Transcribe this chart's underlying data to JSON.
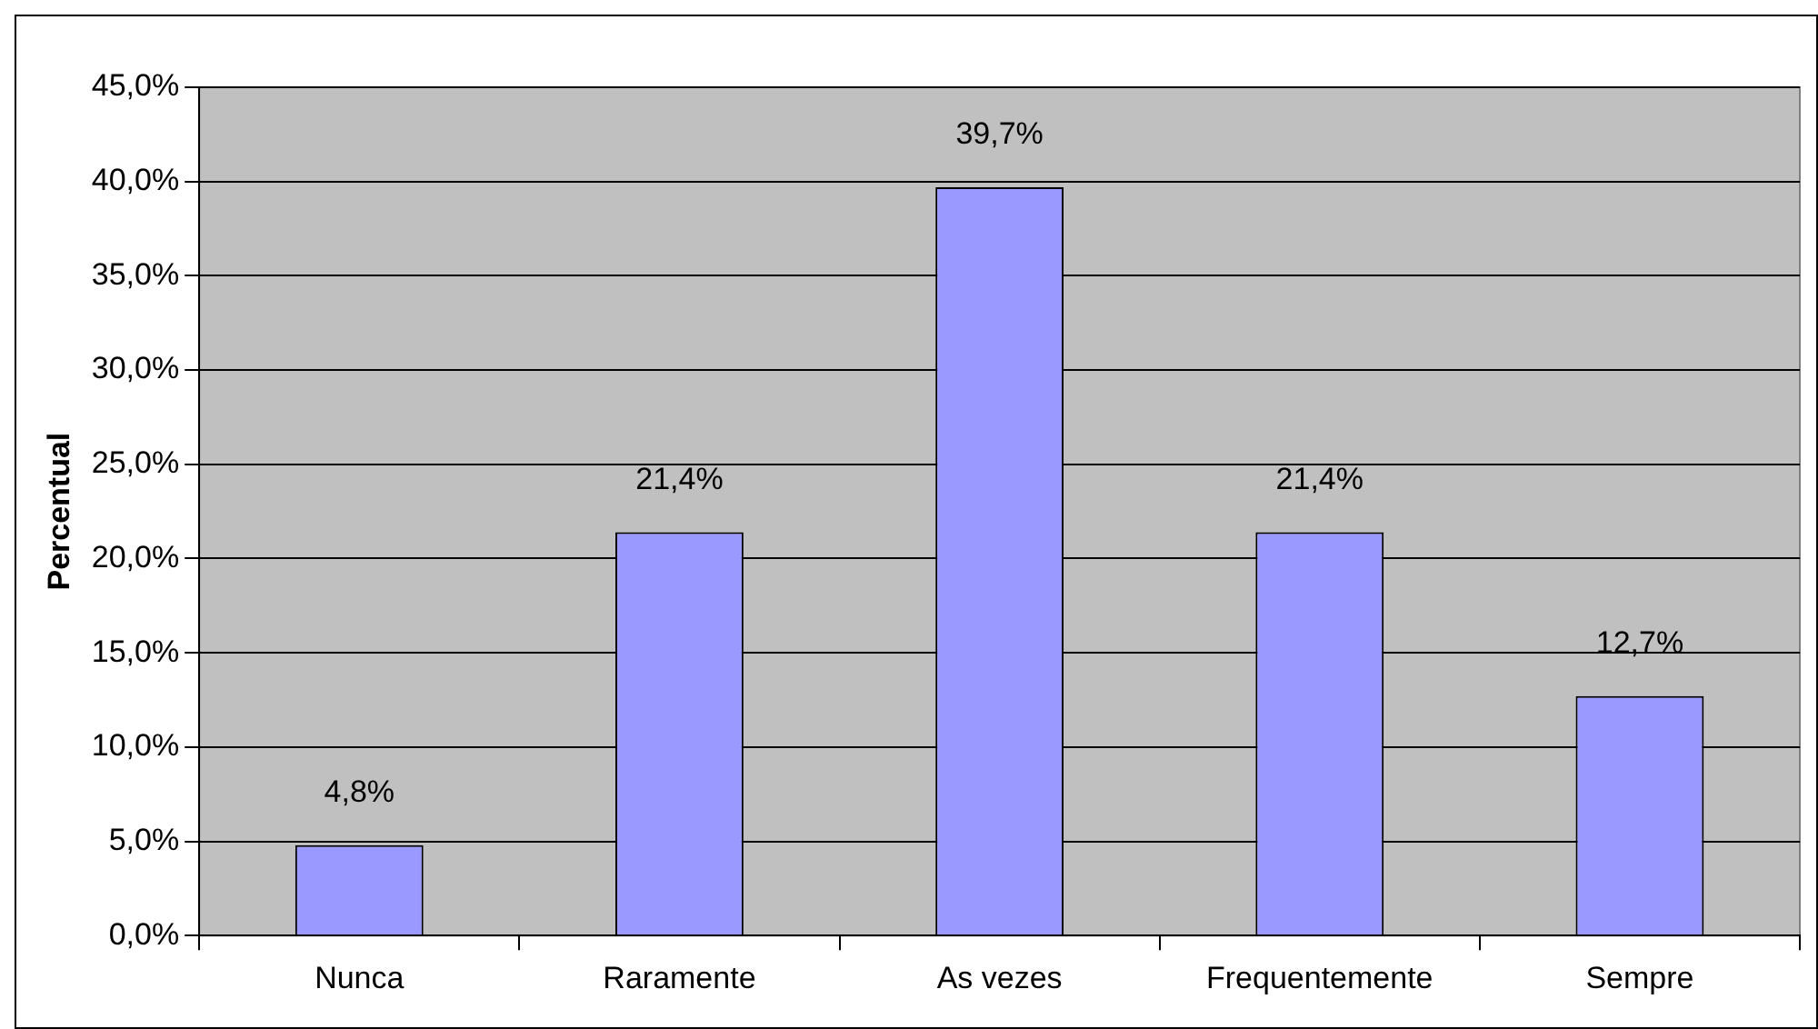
{
  "chart_data": {
    "type": "bar",
    "ylabel": "Percentual",
    "categories": [
      "Nunca",
      "Raramente",
      "As vezes",
      "Frequentemente",
      "Sempre"
    ],
    "values": [
      4.8,
      21.4,
      39.7,
      21.4,
      12.7
    ],
    "value_labels": [
      "4,8%",
      "21,4%",
      "39,7%",
      "21,4%",
      "12,7%"
    ],
    "color": "#9999ff",
    "ylim": [
      0,
      45
    ],
    "yticks": [
      {
        "value": 0,
        "label": "0,0%"
      },
      {
        "value": 5,
        "label": "5,0%"
      },
      {
        "value": 10,
        "label": "10,0%"
      },
      {
        "value": 15,
        "label": "15,0%"
      },
      {
        "value": 20,
        "label": "20,0%"
      },
      {
        "value": 25,
        "label": "25,0%"
      },
      {
        "value": 30,
        "label": "30,0%"
      },
      {
        "value": 35,
        "label": "35,0%"
      },
      {
        "value": 40,
        "label": "40,0%"
      },
      {
        "value": 45,
        "label": "45,0%"
      }
    ],
    "grid": "y",
    "legend": false
  }
}
